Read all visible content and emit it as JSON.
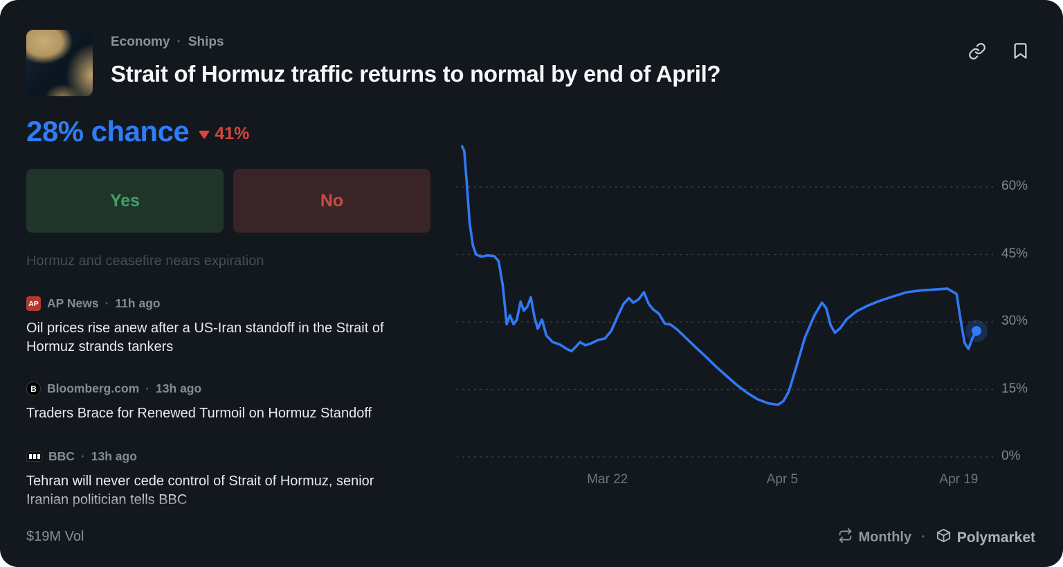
{
  "colors": {
    "background": "#12181e",
    "accent_blue": "#2f7cf6",
    "chart_line": "#3179f5",
    "down_red": "#d8453f",
    "yes_green": "#3fa168",
    "no_red": "#cb4b44"
  },
  "breadcrumb": {
    "items": [
      "Economy",
      "Ships"
    ],
    "separator": "·"
  },
  "title": "Strait of Hormuz traffic returns to normal by end of April?",
  "chance": {
    "value": "28%",
    "label": "chance",
    "change": "41%",
    "direction": "down"
  },
  "buttons": {
    "yes": "Yes",
    "no": "No"
  },
  "news": {
    "faded_headline": "Hormuz and ceasefire nears expiration",
    "meta_separator": "·",
    "items": [
      {
        "source": "AP News",
        "time": "11h ago",
        "logo_text": "AP",
        "headline": "Oil prices rise anew after a US-Iran standoff in the Strait of Hormuz strands tankers"
      },
      {
        "source": "Bloomberg.com",
        "time": "13h ago",
        "logo_text": "B",
        "headline": "Traders Brace for Renewed Turmoil on Hormuz Standoff"
      },
      {
        "source": "BBC",
        "time": "13h ago",
        "logo_text": "BBC",
        "headline": "Tehran will never cede control of Strait of Hormuz, senior Iranian politician tells BBC"
      }
    ]
  },
  "footer": {
    "volume": "$19M Vol",
    "interval": "Monthly",
    "brand": "Polymarket",
    "separator": "·"
  },
  "icons": {
    "header": [
      "copy-link-icon",
      "bookmark-icon"
    ],
    "change": "down-arrow-icon",
    "footer": [
      "repeat-icon",
      "polymarket-logo-icon"
    ]
  },
  "chart_data": {
    "type": "line",
    "title": "Yes price history",
    "ylim": [
      0,
      72
    ],
    "grid": "dotted-horizontal",
    "legend": "none",
    "y_ticks": [
      {
        "label": "60%",
        "value": 60
      },
      {
        "label": "45%",
        "value": 45
      },
      {
        "label": "30%",
        "value": 30
      },
      {
        "label": "15%",
        "value": 15
      },
      {
        "label": "0%",
        "value": 0
      }
    ],
    "x_ticks": [
      {
        "label": "Mar 22",
        "pos": 0.281
      },
      {
        "label": "Apr 5",
        "pos": 0.607
      },
      {
        "label": "Apr 19",
        "pos": 0.936
      }
    ],
    "current_value": 28,
    "series": [
      {
        "name": "Yes",
        "color": "#3179f5",
        "points": [
          [
            0.01,
            69
          ],
          [
            0.014,
            68
          ],
          [
            0.018,
            62
          ],
          [
            0.024,
            52
          ],
          [
            0.03,
            47
          ],
          [
            0.036,
            45
          ],
          [
            0.046,
            44.5
          ],
          [
            0.058,
            44.8
          ],
          [
            0.07,
            44.6
          ],
          [
            0.078,
            43.5
          ],
          [
            0.086,
            38
          ],
          [
            0.093,
            29.5
          ],
          [
            0.099,
            31.5
          ],
          [
            0.106,
            29.5
          ],
          [
            0.112,
            30.5
          ],
          [
            0.119,
            34.5
          ],
          [
            0.125,
            32.5
          ],
          [
            0.132,
            33.5
          ],
          [
            0.138,
            35.5
          ],
          [
            0.145,
            31
          ],
          [
            0.151,
            28.5
          ],
          [
            0.159,
            30.5
          ],
          [
            0.167,
            27
          ],
          [
            0.179,
            25.5
          ],
          [
            0.192,
            25
          ],
          [
            0.205,
            24
          ],
          [
            0.214,
            23.5
          ],
          [
            0.222,
            24.5
          ],
          [
            0.23,
            25.5
          ],
          [
            0.24,
            24.8
          ],
          [
            0.252,
            25.3
          ],
          [
            0.264,
            26
          ],
          [
            0.276,
            26.3
          ],
          [
            0.288,
            28
          ],
          [
            0.299,
            31
          ],
          [
            0.311,
            34
          ],
          [
            0.321,
            35.3
          ],
          [
            0.329,
            34.3
          ],
          [
            0.339,
            35
          ],
          [
            0.349,
            36.6
          ],
          [
            0.358,
            34
          ],
          [
            0.366,
            32.8
          ],
          [
            0.377,
            31.8
          ],
          [
            0.388,
            29.6
          ],
          [
            0.399,
            29.4
          ],
          [
            0.411,
            28.3
          ],
          [
            0.427,
            26.5
          ],
          [
            0.446,
            24.3
          ],
          [
            0.465,
            22.2
          ],
          [
            0.484,
            20
          ],
          [
            0.503,
            18
          ],
          [
            0.522,
            16
          ],
          [
            0.542,
            14.2
          ],
          [
            0.561,
            12.8
          ],
          [
            0.581,
            11.9
          ],
          [
            0.599,
            11.6
          ],
          [
            0.609,
            12.4
          ],
          [
            0.619,
            14.5
          ],
          [
            0.633,
            20
          ],
          [
            0.649,
            26.5
          ],
          [
            0.667,
            31.5
          ],
          [
            0.681,
            34.3
          ],
          [
            0.689,
            33
          ],
          [
            0.697,
            29.3
          ],
          [
            0.705,
            27.6
          ],
          [
            0.715,
            28.6
          ],
          [
            0.727,
            30.6
          ],
          [
            0.746,
            32.4
          ],
          [
            0.766,
            33.6
          ],
          [
            0.787,
            34.6
          ],
          [
            0.812,
            35.6
          ],
          [
            0.839,
            36.6
          ],
          [
            0.865,
            37
          ],
          [
            0.891,
            37.2
          ],
          [
            0.915,
            37.4
          ],
          [
            0.932,
            36.2
          ],
          [
            0.94,
            30
          ],
          [
            0.947,
            25.3
          ],
          [
            0.954,
            24
          ],
          [
            0.961,
            26.3
          ],
          [
            0.969,
            28
          ]
        ]
      }
    ]
  }
}
